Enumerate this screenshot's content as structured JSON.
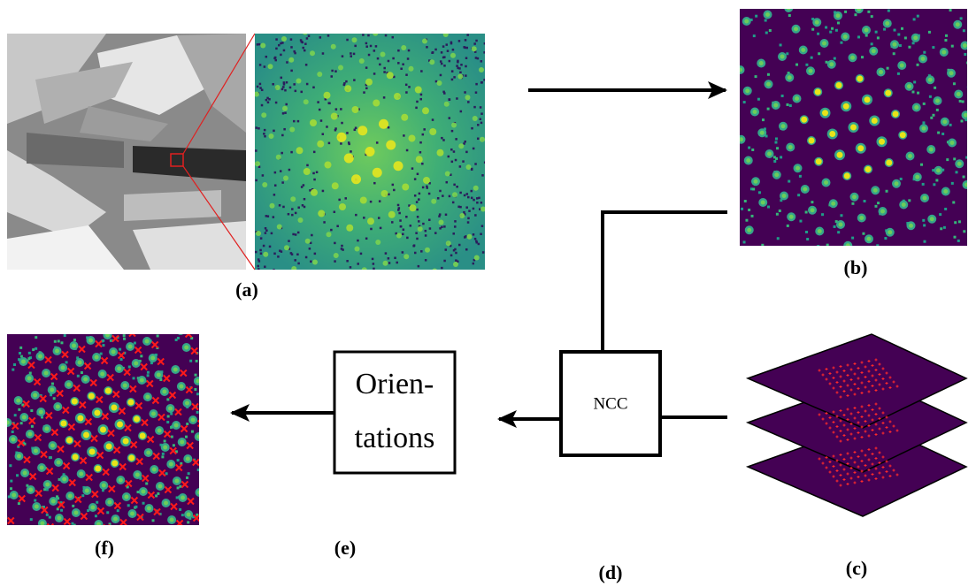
{
  "labels": {
    "a": "(a)",
    "b": "(b)",
    "c": "(c)",
    "d": "(d)",
    "e": "(e)",
    "f": "(f)"
  },
  "boxes": {
    "orientations": [
      "Orien-",
      "tations"
    ],
    "ncc": "NCC"
  }
}
